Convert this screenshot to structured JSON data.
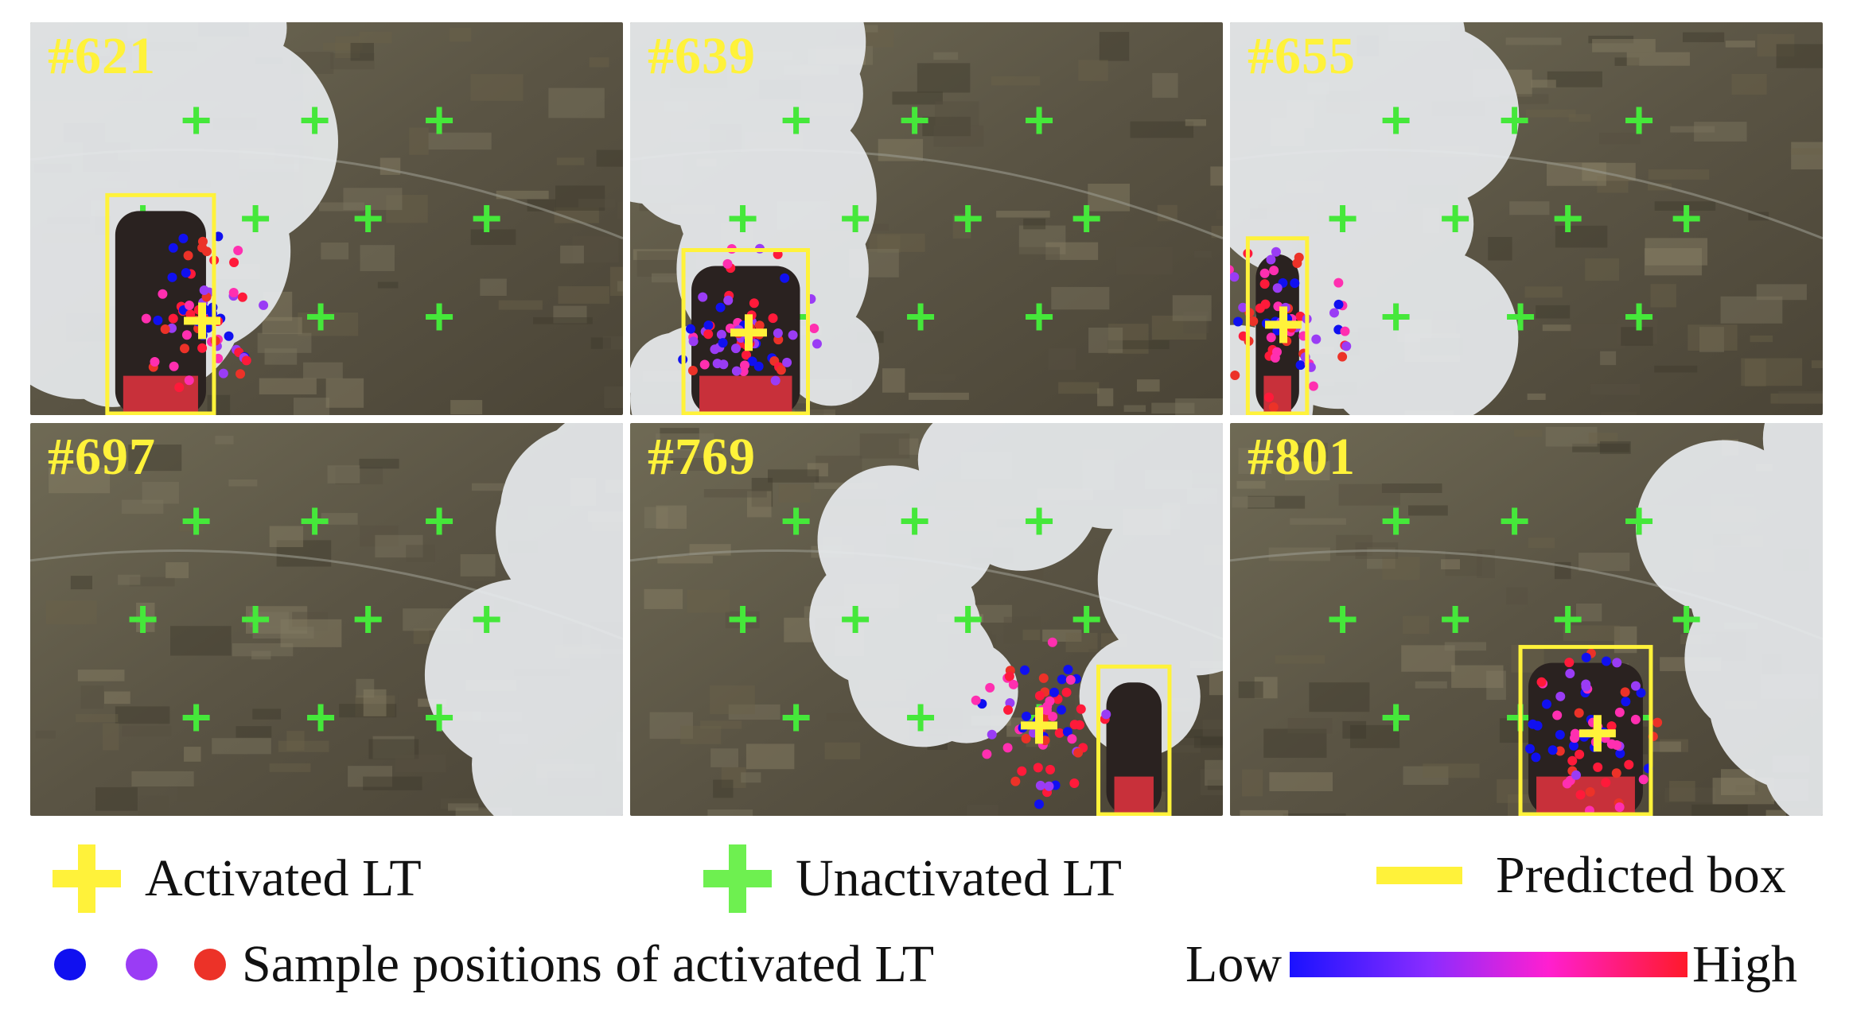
{
  "panels": [
    {
      "label": "#621",
      "scene": "clouds-left",
      "box": [
        0.13,
        0.44,
        0.31,
        1.0
      ],
      "cross": [
        0.29,
        0.76
      ],
      "has_box": true
    },
    {
      "label": "#639",
      "scene": "clouds-left",
      "box": [
        0.09,
        0.58,
        0.3,
        1.0
      ],
      "cross": [
        0.2,
        0.79
      ],
      "has_box": true
    },
    {
      "label": "#655",
      "scene": "clouds-left",
      "box": [
        0.03,
        0.55,
        0.13,
        1.0
      ],
      "cross": [
        0.09,
        0.77
      ],
      "has_box": true
    },
    {
      "label": "#697",
      "scene": "clouds-right",
      "has_box": false
    },
    {
      "label": "#769",
      "scene": "clouds-mid",
      "box": [
        0.79,
        0.62,
        0.91,
        1.0
      ],
      "cross": [
        0.69,
        0.77
      ],
      "has_box": true
    },
    {
      "label": "#801",
      "scene": "clouds-right",
      "box": [
        0.49,
        0.57,
        0.71,
        1.0
      ],
      "cross": [
        0.62,
        0.79
      ],
      "has_box": true
    }
  ],
  "legend": {
    "activated_label": "Activated LT",
    "unactivated_label": "Unactivated LT",
    "predicted_box_label": "Predicted box",
    "samples_label": "Sample positions of activated LT",
    "low_label": "Low",
    "high_label": "High"
  },
  "colors": {
    "activated": "#fff23a",
    "unactivated": "#45e83a",
    "box": "#fff23a",
    "dot_blue": "#1010f0",
    "dot_purple": "#9a3cf5",
    "dot_red": "#ec3228"
  }
}
